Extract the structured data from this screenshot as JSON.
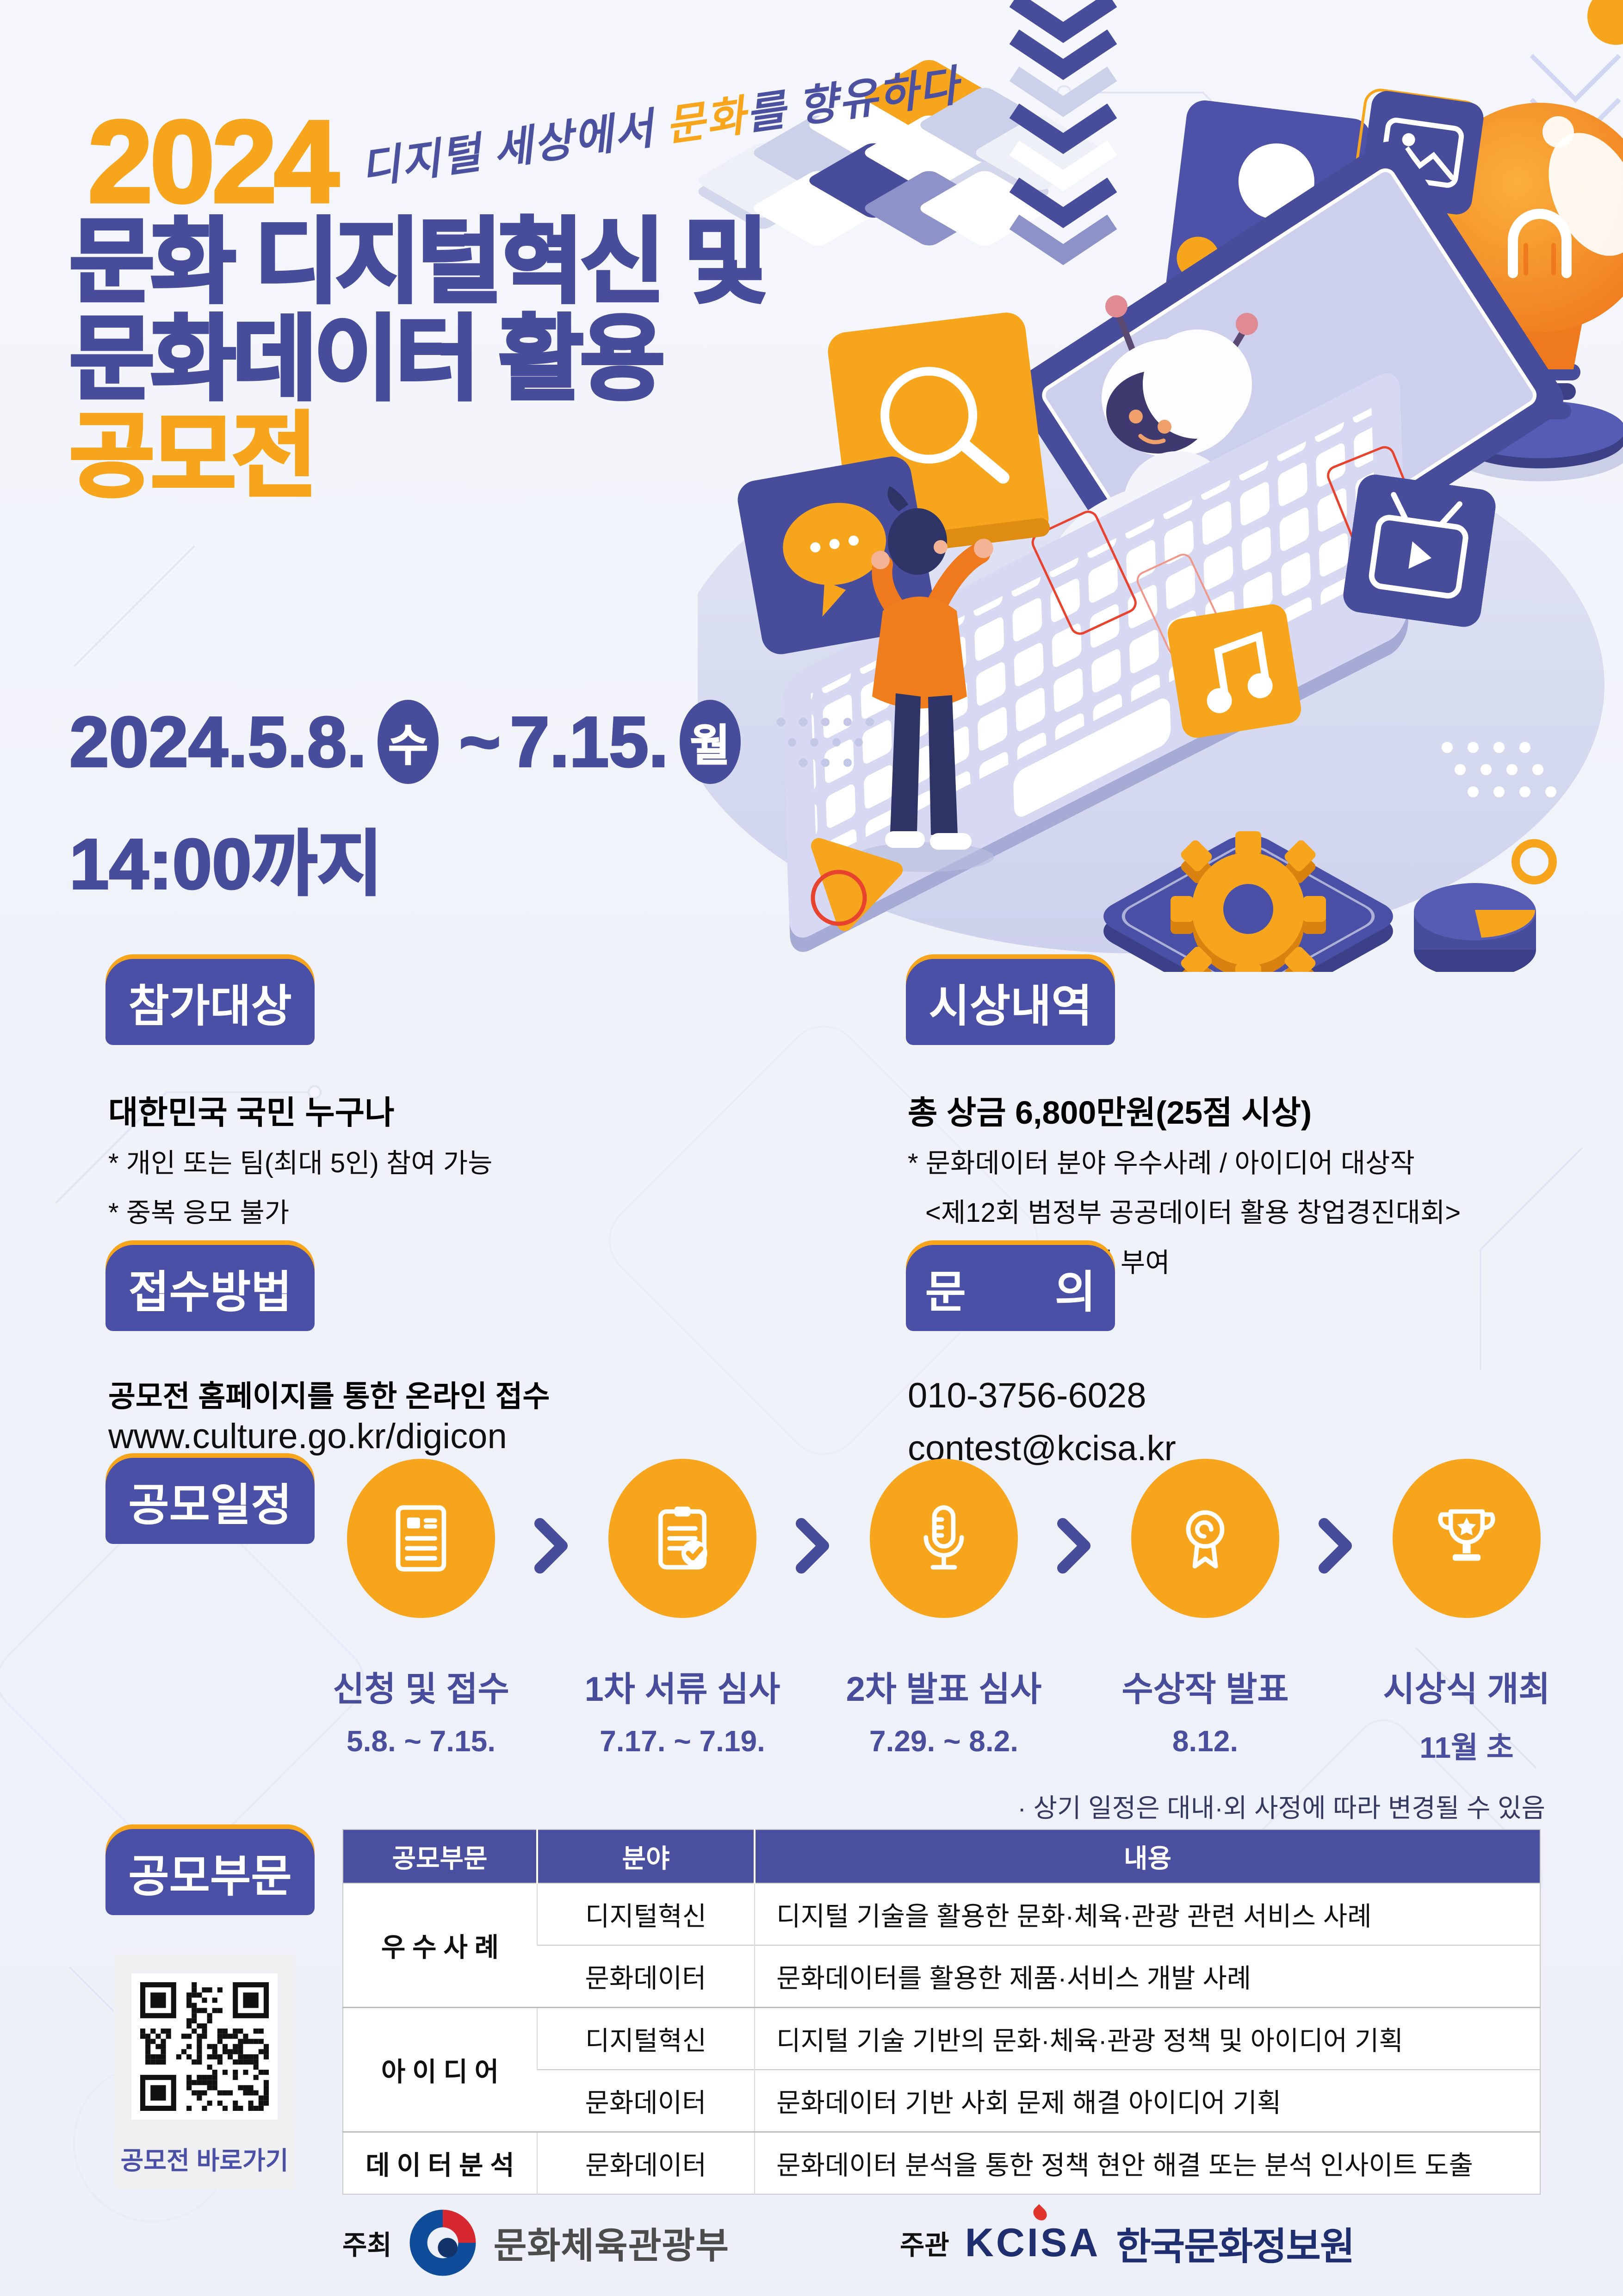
{
  "hero": {
    "year": "2024",
    "tagline_prefix": "디지털 세상에서 ",
    "tagline_highlight": "문화",
    "tagline_suffix": "를 향유하다",
    "title_line1": "문화 디지털혁신 및",
    "title_line2": "문화데이터 활용",
    "title_line3": "공모전",
    "period_start": "2024.5.8.",
    "period_start_day": "수",
    "period_separator": "~",
    "period_end": "7.15.",
    "period_end_day": "월",
    "deadline": "14:00까지"
  },
  "sections": {
    "target": {
      "header": "참가대상",
      "headline": "대한민국 국민 누구나",
      "bullet1": "* 개인 또는 팀(최대 5인) 참여 가능",
      "bullet2": "* 중복 응모 불가"
    },
    "awards": {
      "header": "시상내역",
      "headline": "총 상금 6,800만원(25점 시상)",
      "bullet1": "* 문화데이터 분야 우수사례 / 아이디어 대상작",
      "bullet2": "<제12회 범정부 공공데이터 활용 창업경진대회>",
      "bullet3": "통합 본선 진출권 부여"
    },
    "apply": {
      "header": "접수방법",
      "headline": "공모전 홈페이지를 통한 온라인 접수",
      "url": "www.culture.go.kr/digicon"
    },
    "contact": {
      "header": "문　　의",
      "phone": "010-3756-6028",
      "email": "contest@kcisa.kr"
    }
  },
  "schedule": {
    "header": "공모일정",
    "steps": [
      {
        "label": "신청 및 접수",
        "date": "5.8. ~ 7.15.",
        "icon": "document-icon"
      },
      {
        "label": "1차 서류 심사",
        "date": "7.17. ~ 7.19.",
        "icon": "clipboard-check-icon"
      },
      {
        "label": "2차 발표 심사",
        "date": "7.29. ~ 8.2.",
        "icon": "microphone-icon"
      },
      {
        "label": "수상작 발표",
        "date": "8.12.",
        "icon": "medal-icon"
      },
      {
        "label": "시상식 개최",
        "date": "11월 초",
        "icon": "trophy-icon"
      }
    ],
    "note": "· 상기 일정은 대내·외 사정에 따라 변경될 수 있음"
  },
  "categories": {
    "header": "공모부문",
    "qr_caption": "공모전 바로가기",
    "table": {
      "columns": [
        "공모부문",
        "분야",
        "내용"
      ],
      "rows": [
        {
          "category": "우수사례",
          "field": "디지털혁신",
          "content": "디지털 기술을 활용한 문화·체육·관광 관련 서비스 사례"
        },
        {
          "category": "",
          "field": "문화데이터",
          "content": "문화데이터를 활용한 제품·서비스 개발 사례"
        },
        {
          "category": "아이디어",
          "field": "디지털혁신",
          "content": "디지털 기술 기반의 문화·체육·관광 정책 및 아이디어 기획"
        },
        {
          "category": "",
          "field": "문화데이터",
          "content": "문화데이터 기반 사회 문제 해결 아이디어 기획"
        },
        {
          "category": "데이터분석",
          "field": "문화데이터",
          "content": "문화데이터 분석을 통한 정책 현안 해결 또는 분석 인사이트 도출"
        }
      ]
    }
  },
  "footer": {
    "host_label": "주최",
    "host_name": "문화체육관광부",
    "organizer_label": "주관",
    "organizer_logo": "KCISA",
    "organizer_name": "한국문화정보원"
  },
  "colors": {
    "accent_orange": "#F6A51C",
    "navy": "#474C9B",
    "badge_blue": "#4A50A6",
    "table_header_blue": "#4A4FA0",
    "text_black": "#101010",
    "kcisa_navy": "#1F2E6E",
    "kcisa_red": "#E0342C",
    "mcst_blue": "#0F4C9A",
    "mcst_red": "#D7282F"
  }
}
